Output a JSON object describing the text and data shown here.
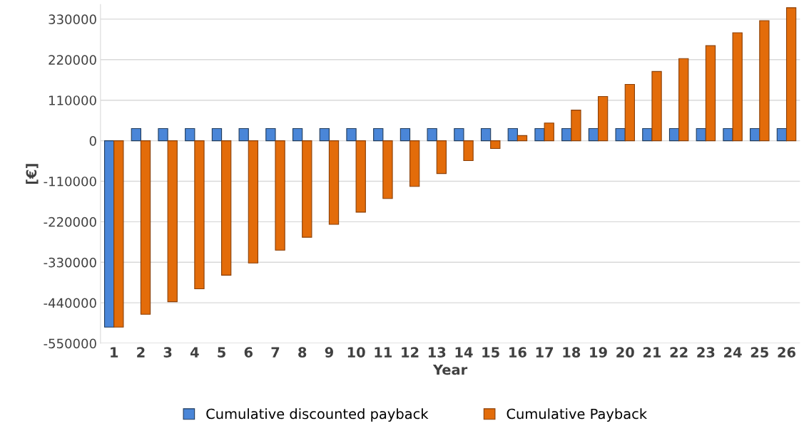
{
  "chart_data": {
    "type": "bar",
    "xlabel": "Year",
    "ylabel": "[€]",
    "categories": [
      "1",
      "2",
      "3",
      "4",
      "5",
      "6",
      "7",
      "8",
      "9",
      "10",
      "11",
      "12",
      "13",
      "14",
      "15",
      "16",
      "17",
      "18",
      "19",
      "20",
      "21",
      "22",
      "23",
      "24",
      "25",
      "26"
    ],
    "series": [
      {
        "name": "Cumulative discounted payback",
        "color": "#4a86d8",
        "values": [
          -506000,
          33000,
          33000,
          33000,
          33000,
          33000,
          33000,
          33000,
          33000,
          33000,
          33000,
          33000,
          33000,
          33000,
          33000,
          33000,
          33000,
          33000,
          33000,
          33000,
          33000,
          33000,
          33000,
          33000,
          33000,
          33000
        ]
      },
      {
        "name": "Cumulative Payback",
        "color": "#e36c0a",
        "values": [
          -506000,
          -471000,
          -437000,
          -402000,
          -365000,
          -332000,
          -297000,
          -262000,
          -227000,
          -194000,
          -157000,
          -124000,
          -89000,
          -54000,
          -21000,
          14000,
          48000,
          83000,
          120000,
          153000,
          188000,
          223000,
          258000,
          293000,
          326000,
          361000
        ]
      }
    ],
    "ylim": [
      -550000,
      370000
    ],
    "yticks": [
      -550000,
      -440000,
      -330000,
      -220000,
      -110000,
      0,
      110000,
      220000,
      330000
    ],
    "grid": "y",
    "legend": "bottom"
  }
}
